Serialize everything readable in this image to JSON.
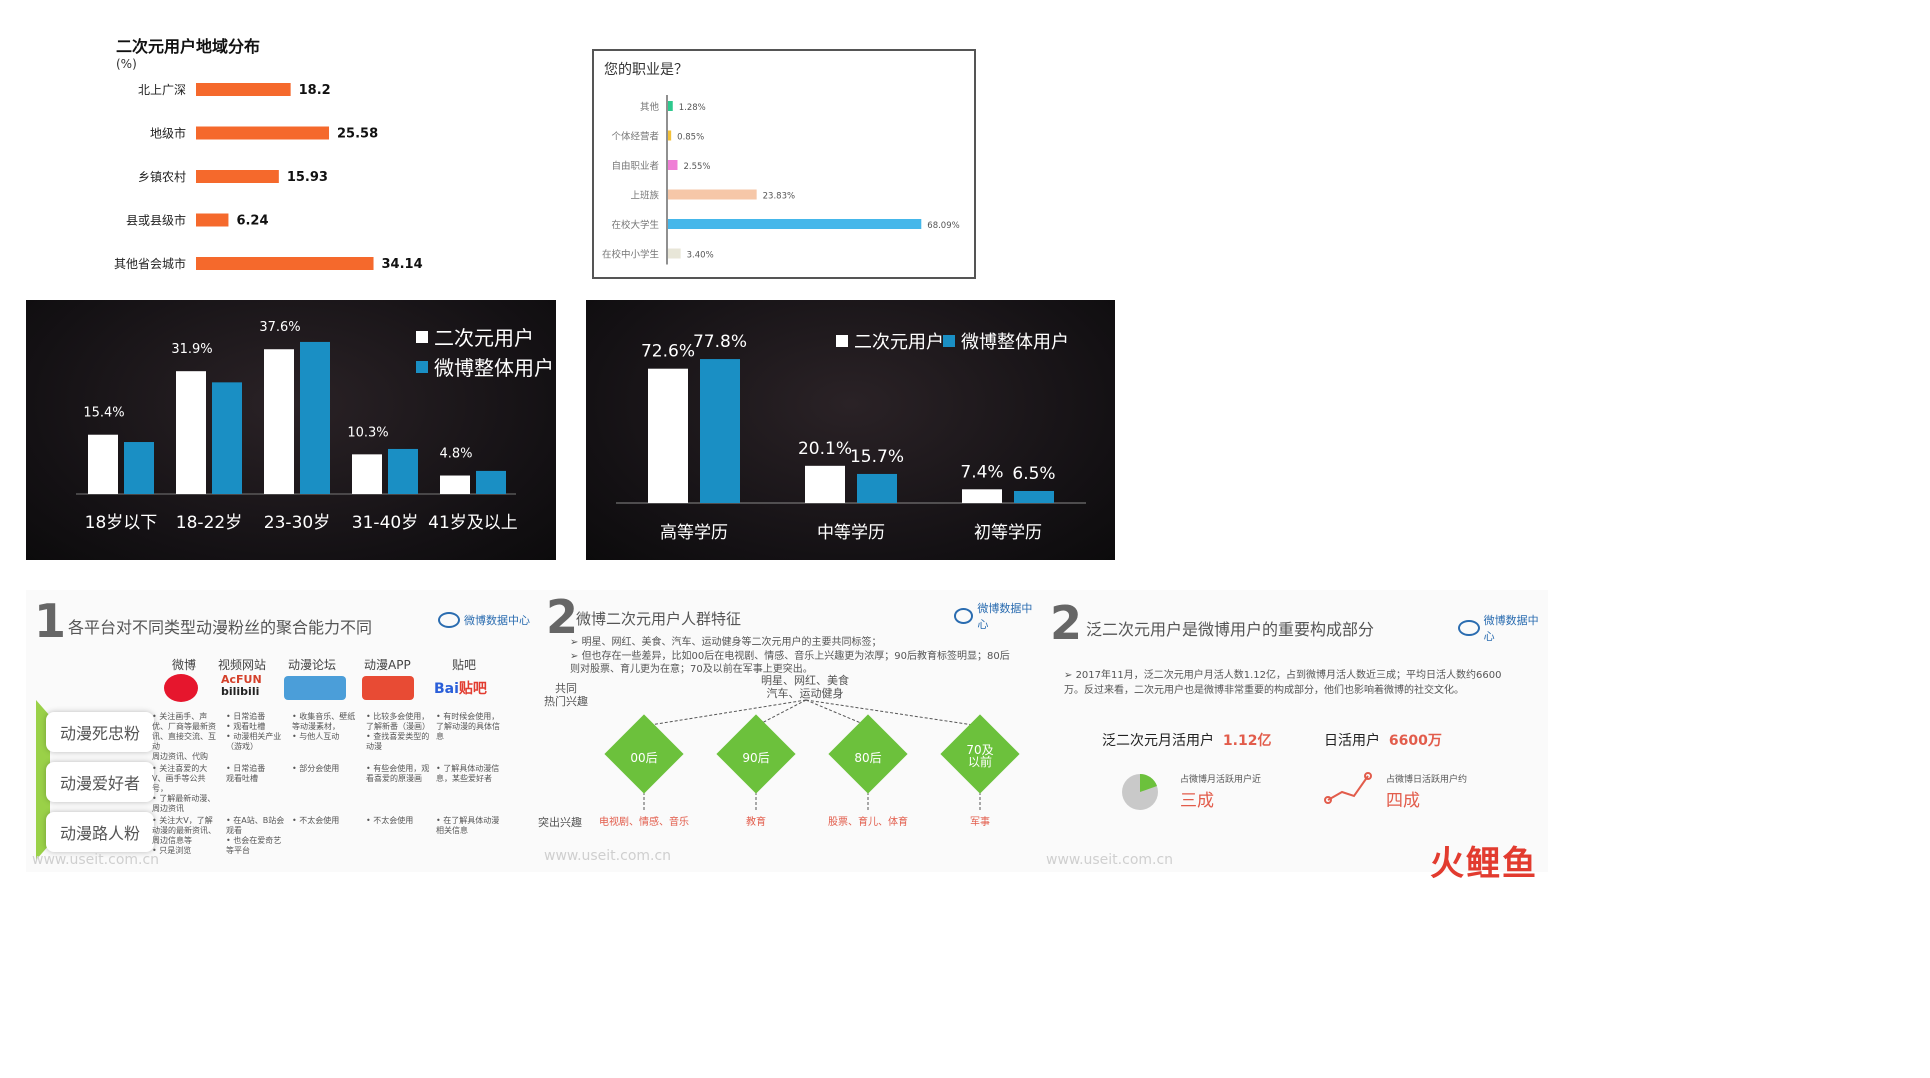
{
  "region": {
    "title": "二次元用户地域分布",
    "unit": "(%)",
    "chart_data": {
      "type": "bar",
      "orientation": "horizontal",
      "title": "二次元用户地域分布",
      "ylabel": "(%)",
      "categories": [
        "北上广深",
        "地级市",
        "乡镇农村",
        "县或县级市",
        "其他省会城市"
      ],
      "values": [
        18.2,
        25.58,
        15.93,
        6.24,
        34.14
      ],
      "value_labels": [
        "18.2",
        "25.58",
        "15.93",
        "6.24",
        "34.14"
      ],
      "color": "#f5692c"
    }
  },
  "occupation": {
    "title": "您的职业是？",
    "chart_data": {
      "type": "bar",
      "orientation": "horizontal",
      "title": "您的职业是？",
      "categories": [
        "其他",
        "个体经营者",
        "自由职业者",
        "上班族",
        "在校大学生",
        "在校中小学生"
      ],
      "values": [
        1.28,
        0.85,
        2.55,
        23.83,
        68.09,
        3.4
      ],
      "value_labels": [
        "1.28%",
        "0.85%",
        "2.55%",
        "23.83%",
        "68.09%",
        "3.40%"
      ],
      "colors": [
        "#2ec98e",
        "#f3c13a",
        "#ef7fd6",
        "#f6c7a8",
        "#45b7ea",
        "#e8e6d8"
      ]
    }
  },
  "age": {
    "legend": [
      "二次元用户",
      "微博整体用户"
    ],
    "chart_data": {
      "type": "bar",
      "categories": [
        "18岁以下",
        "18-22岁",
        "23-30岁",
        "31-40岁",
        "41岁及以上"
      ],
      "series": [
        {
          "name": "二次元用户",
          "values": [
            15.4,
            31.9,
            37.6,
            10.3,
            4.8
          ],
          "color": "#ffffff"
        },
        {
          "name": "微博整体用户",
          "values": [
            13.5,
            29.0,
            39.5,
            11.7,
            6.0
          ],
          "color": "#1a8fc4"
        }
      ],
      "data_labels": [
        "15.4%",
        "31.9%",
        "37.6%",
        "10.3%",
        "4.8%"
      ],
      "ylim": [
        0,
        40
      ]
    }
  },
  "education": {
    "legend": [
      "二次元用户",
      "微博整体用户"
    ],
    "chart_data": {
      "type": "bar",
      "categories": [
        "高等学历",
        "中等学历",
        "初等学历"
      ],
      "series": [
        {
          "name": "二次元用户",
          "values": [
            72.6,
            20.1,
            7.4
          ],
          "color": "#ffffff"
        },
        {
          "name": "微博整体用户",
          "values": [
            77.8,
            15.7,
            6.5
          ],
          "color": "#1a8fc4"
        }
      ],
      "data_labels_s1": [
        "72.6%",
        "20.1%",
        "7.4%"
      ],
      "data_labels_s2": [
        "77.8%",
        "15.7%",
        "6.5%"
      ],
      "ylim": [
        0,
        80
      ]
    }
  },
  "slide1": {
    "num": "1",
    "title": "各平台对不同类型动漫粉丝的聚合能力不同",
    "logo": "微博数据中心",
    "platforms": [
      "微博",
      "视频网站",
      "动漫论坛",
      "动漫APP",
      "贴吧"
    ],
    "logos": [
      "weibo-logo",
      "acfun-bilibili-logo",
      "forum-logo",
      "app-logo",
      "baidu-tieba-logo"
    ],
    "rows": [
      {
        "label": "动漫死忠粉",
        "cells": [
          "• 关注画手、声优、厂商等最新资讯、直接交流、互动\n周边资讯、代购",
          "• 日常追番\n• 观看吐槽\n• 动漫相关产业（游戏）",
          "• 收集音乐、壁纸等动漫素材，\n• 与他人互动",
          "• 比较多会使用，了解新番（漫画）\n• 查找喜爱类型的动漫",
          "• 有时候会使用，了解动漫的具体信息"
        ]
      },
      {
        "label": "动漫爱好者",
        "cells": [
          "• 关注喜爱的大V、画手等公共号，\n• 了解最新动漫、周边资讯",
          "• 日常追番\n观看吐槽",
          "• 部分会使用",
          "• 有些会使用，观看喜爱的原漫画",
          "• 了解具体动漫信息，某些爱好者"
        ]
      },
      {
        "label": "动漫路人粉",
        "cells": [
          "• 关注大V，了解动漫的最新资讯、周边信息等\n• 只是浏览",
          "• 在A站、B站会观看\n• 也会在爱奇艺等平台",
          "• 不太会使用",
          "• 不太会使用",
          "• 在了解具体动漫相关信息"
        ]
      }
    ],
    "watermark": "www.useit.com.cn"
  },
  "slide2": {
    "num": "2",
    "title": "微博二次元用户人群特征",
    "logo": "微博数据中心",
    "bullets": [
      "明星、网红、美食、汽车、运动健身等二次元用户的主要共同标签；",
      "但也存在一些差异，比如00后在电视剧、情感、音乐上兴趣更为浓厚；90后教育标签明显；80后则对股票、育儿更为在意；70及以前在军事上更突出。"
    ],
    "common_label": "共同\n热门兴趣",
    "common_interests": "明星、网红、美食\n汽车、运动健身",
    "groups": [
      "00后",
      "90后",
      "80后",
      "70及\n以前"
    ],
    "outstanding_label": "突出兴趣",
    "outstanding": [
      "电视剧、情感、音乐",
      "教育",
      "股票、育儿、体育",
      "军事"
    ],
    "watermark": "www.useit.com.cn"
  },
  "slide3": {
    "num": "2",
    "title": "泛二次元用户是微博用户的重要构成部分",
    "logo": "微博数据中心",
    "bullet": "2017年11月，泛二次元用户月活人数1.12亿，占到微博月活人数近三成；平均日活人数约6600万。反过来看，二次元用户也是微博非常重要的构成部分，他们也影响着微博的社交文化。",
    "mau_label": "泛二次元月活用户",
    "mau_value": "1.12亿",
    "dau_label": "日活用户",
    "dau_value": "6600万",
    "mau_share_caption": "占微博月活跃用户近",
    "mau_share": "三成",
    "dau_share_caption": "占微博日活跃用户约",
    "dau_share": "四成",
    "watermark": "www.useit.com.cn",
    "brand": "火鲤鱼"
  }
}
